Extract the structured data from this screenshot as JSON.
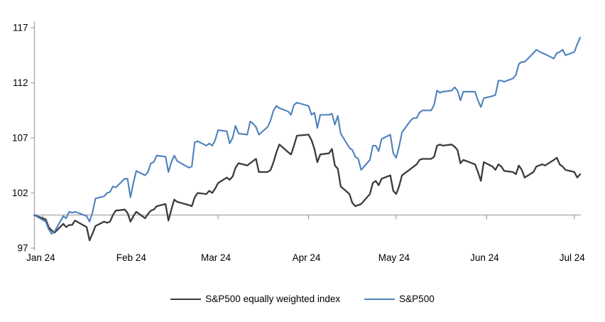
{
  "chart_data": {
    "type": "line",
    "title": "",
    "xlabel": "",
    "ylabel": "",
    "baseline_value": 100,
    "y_ticks": [
      97,
      102,
      107,
      112,
      117
    ],
    "ylim": [
      96.8,
      117.6
    ],
    "x_tick_labels": [
      "Jan 24",
      "Feb 24",
      "Mar 24",
      "Apr 24",
      "May 24",
      "Jun 24",
      "Jul 24"
    ],
    "x_tick_day_offsets": [
      3,
      34,
      63,
      94,
      124,
      155,
      185
    ],
    "legend_position": "bottom",
    "grid": false,
    "axis_color": "#A6A6A6",
    "label_color": "#000000",
    "dates": [
      "Dec 29",
      "Jan 2",
      "Jan 3",
      "Jan 4",
      "Jan 5",
      "Jan 8",
      "Jan 9",
      "Jan 10",
      "Jan 11",
      "Jan 12",
      "Jan 16",
      "Jan 17",
      "Jan 18",
      "Jan 19",
      "Jan 22",
      "Jan 23",
      "Jan 24",
      "Jan 25",
      "Jan 26",
      "Jan 29",
      "Jan 30",
      "Jan 31",
      "Feb 1",
      "Feb 2",
      "Feb 5",
      "Feb 6",
      "Feb 7",
      "Feb 8",
      "Feb 9",
      "Feb 12",
      "Feb 13",
      "Feb 14",
      "Feb 15",
      "Feb 16",
      "Feb 20",
      "Feb 21",
      "Feb 22",
      "Feb 23",
      "Feb 26",
      "Feb 27",
      "Feb 28",
      "Feb 29",
      "Mar 1",
      "Mar 4",
      "Mar 5",
      "Mar 6",
      "Mar 7",
      "Mar 8",
      "Mar 11",
      "Mar 12",
      "Mar 13",
      "Mar 14",
      "Mar 15",
      "Mar 18",
      "Mar 19",
      "Mar 20",
      "Mar 21",
      "Mar 22",
      "Mar 25",
      "Mar 26",
      "Mar 27",
      "Mar 28",
      "Apr 1",
      "Apr 2",
      "Apr 3",
      "Apr 4",
      "Apr 5",
      "Apr 8",
      "Apr 9",
      "Apr 10",
      "Apr 11",
      "Apr 12",
      "Apr 15",
      "Apr 16",
      "Apr 17",
      "Apr 18",
      "Apr 19",
      "Apr 22",
      "Apr 23",
      "Apr 24",
      "Apr 25",
      "Apr 26",
      "Apr 29",
      "Apr 30",
      "May 1",
      "May 2",
      "May 3",
      "May 6",
      "May 7",
      "May 8",
      "May 9",
      "May 10",
      "May 13",
      "May 14",
      "May 15",
      "May 16",
      "May 17",
      "May 20",
      "May 21",
      "May 22",
      "May 23",
      "May 24",
      "May 28",
      "May 29",
      "May 30",
      "May 31",
      "Jun 3",
      "Jun 4",
      "Jun 5",
      "Jun 6",
      "Jun 7",
      "Jun 10",
      "Jun 11",
      "Jun 12",
      "Jun 13",
      "Jun 14",
      "Jun 17",
      "Jun 18",
      "Jun 20",
      "Jun 21",
      "Jun 24",
      "Jun 25",
      "Jun 26",
      "Jun 27",
      "Jun 28",
      "Jul 1",
      "Jul 2",
      "Jul 3"
    ],
    "day_offsets": [
      0,
      4,
      5,
      6,
      7,
      10,
      11,
      12,
      13,
      14,
      18,
      19,
      20,
      21,
      24,
      25,
      26,
      27,
      28,
      31,
      32,
      33,
      34,
      35,
      38,
      39,
      40,
      41,
      42,
      45,
      46,
      47,
      48,
      49,
      53,
      54,
      55,
      56,
      59,
      60,
      61,
      62,
      63,
      66,
      67,
      68,
      69,
      70,
      73,
      74,
      75,
      76,
      77,
      80,
      81,
      82,
      83,
      84,
      87,
      88,
      89,
      90,
      94,
      95,
      96,
      97,
      98,
      101,
      102,
      103,
      104,
      105,
      108,
      109,
      110,
      111,
      112,
      115,
      116,
      117,
      118,
      119,
      122,
      123,
      124,
      125,
      126,
      129,
      130,
      131,
      132,
      133,
      136,
      137,
      138,
      139,
      140,
      143,
      144,
      145,
      146,
      147,
      151,
      152,
      153,
      154,
      157,
      158,
      159,
      160,
      161,
      164,
      165,
      166,
      167,
      168,
      171,
      172,
      174,
      175,
      178,
      179,
      180,
      181,
      182,
      185,
      186,
      187
    ],
    "series": [
      {
        "name": "S&P500 equally weighted index",
        "color": "#3B3B3B",
        "stroke_width": 2.3,
        "values": [
          100.0,
          99.6,
          98.9,
          98.6,
          98.4,
          99.2,
          98.9,
          99.1,
          99.1,
          99.5,
          98.9,
          97.7,
          98.3,
          99.0,
          99.4,
          99.3,
          99.4,
          100.0,
          100.4,
          100.5,
          100.2,
          99.4,
          99.9,
          100.3,
          99.7,
          100.1,
          100.4,
          100.5,
          100.8,
          101.0,
          99.5,
          100.5,
          101.4,
          101.2,
          100.9,
          100.8,
          101.6,
          102.0,
          101.9,
          102.2,
          102.0,
          102.4,
          102.9,
          103.4,
          103.2,
          103.5,
          104.3,
          104.7,
          104.5,
          104.7,
          104.9,
          105.1,
          103.9,
          103.9,
          104.1,
          104.8,
          105.7,
          106.4,
          105.7,
          105.5,
          106.3,
          107.2,
          107.3,
          106.8,
          106.0,
          104.8,
          105.5,
          105.6,
          106.0,
          104.5,
          104.2,
          102.6,
          101.9,
          101.1,
          100.8,
          100.9,
          101.0,
          101.9,
          102.9,
          103.1,
          102.7,
          103.3,
          103.6,
          102.2,
          101.9,
          102.6,
          103.6,
          104.2,
          104.4,
          104.6,
          105.0,
          105.1,
          105.1,
          105.3,
          106.3,
          106.4,
          106.3,
          106.4,
          106.2,
          105.9,
          104.7,
          105.0,
          104.6,
          103.9,
          103.1,
          104.8,
          104.4,
          104.1,
          104.6,
          104.4,
          104.0,
          103.9,
          103.7,
          104.5,
          104.1,
          103.4,
          103.9,
          104.4,
          104.6,
          104.5,
          105.0,
          105.2,
          104.6,
          104.4,
          104.1,
          103.9,
          103.4,
          103.7
        ]
      },
      {
        "name": "S&P500",
        "color": "#4F81BD",
        "stroke_width": 2.1,
        "values": [
          100.0,
          99.4,
          98.7,
          98.3,
          98.5,
          99.9,
          99.7,
          100.3,
          100.2,
          100.3,
          99.9,
          99.4,
          100.2,
          101.5,
          101.7,
          102.0,
          102.1,
          102.6,
          102.5,
          103.3,
          103.3,
          101.6,
          102.9,
          104.0,
          103.6,
          103.9,
          104.7,
          104.8,
          105.4,
          105.3,
          103.9,
          104.8,
          105.4,
          104.9,
          104.3,
          104.4,
          106.6,
          106.7,
          106.3,
          106.5,
          106.3,
          106.8,
          107.7,
          107.6,
          106.5,
          107.0,
          108.1,
          107.4,
          107.3,
          108.5,
          108.3,
          108.0,
          107.3,
          108.0,
          108.6,
          109.5,
          109.9,
          109.7,
          109.4,
          109.1,
          110.0,
          110.2,
          109.9,
          109.1,
          109.3,
          107.9,
          109.1,
          109.1,
          109.2,
          108.2,
          109.0,
          107.4,
          106.1,
          105.9,
          105.3,
          105.1,
          104.1,
          105.0,
          106.3,
          106.3,
          105.8,
          106.9,
          107.3,
          105.6,
          105.2,
          106.2,
          107.5,
          108.6,
          108.8,
          108.8,
          109.3,
          109.5,
          109.5,
          110.0,
          111.3,
          111.1,
          111.2,
          111.3,
          111.6,
          111.3,
          110.4,
          111.2,
          111.2,
          110.4,
          109.8,
          110.6,
          110.8,
          110.9,
          112.2,
          112.2,
          112.1,
          112.4,
          112.7,
          113.7,
          113.9,
          113.9,
          114.7,
          115.0,
          114.7,
          114.6,
          114.2,
          114.7,
          114.8,
          115.0,
          114.5,
          114.8,
          115.5,
          116.1
        ]
      }
    ]
  },
  "legend": {
    "items": [
      {
        "label": "S&P500 equally weighted index"
      },
      {
        "label": "S&P500"
      }
    ]
  }
}
